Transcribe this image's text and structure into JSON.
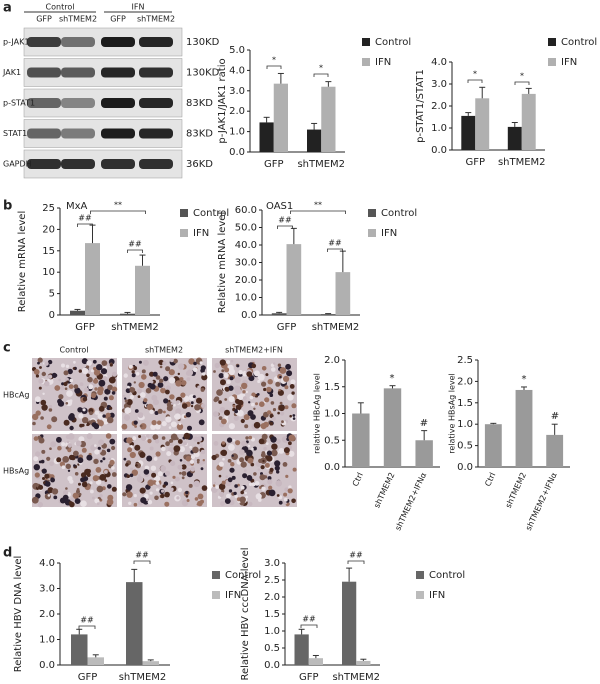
{
  "panel_labels": [
    "a",
    "b",
    "c",
    "d"
  ],
  "blot": {
    "groups": [
      "Control",
      "IFN"
    ],
    "lanes": [
      "GFP",
      "shTMEM2",
      "GFP",
      "shTMEM2"
    ],
    "rows": [
      {
        "label": "p-JAK1",
        "size": "130KD"
      },
      {
        "label": "JAK1",
        "size": "130KD"
      },
      {
        "label": "p-STAT1",
        "size": "83KD"
      },
      {
        "label": "STAT1",
        "size": "83KD"
      },
      {
        "label": "GAPDH",
        "size": "36KD"
      }
    ]
  },
  "micrograph": {
    "columns": [
      "Control",
      "shTMEM2",
      "shTMEM2+IFN"
    ],
    "rows": [
      "HBcAg",
      "HBsAg"
    ]
  },
  "chart_data": [
    {
      "type": "bar",
      "ylabel": "p-JAK1/JAK1 ratio",
      "categories": [
        "GFP",
        "shTMEM2"
      ],
      "series": [
        {
          "name": "Control",
          "color": "#222222",
          "values": [
            1.45,
            1.1
          ],
          "errors": [
            0.25,
            0.3
          ]
        },
        {
          "name": "IFN",
          "color": "#b0b0b0",
          "values": [
            3.35,
            3.2
          ],
          "errors": [
            0.5,
            0.25
          ]
        }
      ],
      "ylim": [
        0,
        5
      ],
      "yticks": [
        {
          "value": 0,
          "label": "0.0"
        },
        {
          "value": 1,
          "label": "1.0"
        },
        {
          "value": 2,
          "label": "2.0"
        },
        {
          "value": 3,
          "label": "3.0"
        },
        {
          "value": 4,
          "label": "4.0"
        },
        {
          "value": 5,
          "label": "5.0"
        }
      ],
      "annotations": [
        "*",
        "*"
      ]
    },
    {
      "type": "bar",
      "ylabel": "p-STAT1/STAT1",
      "categories": [
        "GFP",
        "shTMEM2"
      ],
      "series": [
        {
          "name": "Control",
          "color": "#222222",
          "values": [
            1.55,
            1.05
          ],
          "errors": [
            0.15,
            0.2
          ]
        },
        {
          "name": "IFN",
          "color": "#b0b0b0",
          "values": [
            2.35,
            2.55
          ],
          "errors": [
            0.5,
            0.25
          ]
        }
      ],
      "ylim": [
        0,
        4
      ],
      "yticks": [
        {
          "value": 0,
          "label": "0.0"
        },
        {
          "value": 1,
          "label": "1.0"
        },
        {
          "value": 2,
          "label": "2.0"
        },
        {
          "value": 3,
          "label": "3.0"
        },
        {
          "value": 4,
          "label": "4.0"
        }
      ],
      "annotations": [
        "*",
        "*"
      ]
    },
    {
      "type": "bar",
      "title": "MxA",
      "ylabel": "Relative mRNA level",
      "categories": [
        "GFP",
        "shTMEM2"
      ],
      "series": [
        {
          "name": "Control",
          "color": "#555555",
          "values": [
            1.0,
            0.3
          ],
          "errors": [
            0.3,
            0.3
          ]
        },
        {
          "name": "IFN",
          "color": "#b0b0b0",
          "values": [
            16.8,
            11.5
          ],
          "errors": [
            4.2,
            2.5
          ]
        }
      ],
      "ylim": [
        0,
        25
      ],
      "yticks": [
        0,
        5,
        10,
        15,
        20,
        25
      ],
      "annotations": [
        "##",
        "##",
        "**"
      ]
    },
    {
      "type": "bar",
      "title": "OAS1",
      "ylabel": "Relative mRNA level",
      "categories": [
        "GFP",
        "shTMEM2"
      ],
      "series": [
        {
          "name": "Control",
          "color": "#555555",
          "values": [
            1.0,
            0.5
          ],
          "errors": [
            0.5,
            0.3
          ]
        },
        {
          "name": "IFN",
          "color": "#b0b0b0",
          "values": [
            40.5,
            24.5
          ],
          "errors": [
            9,
            12
          ]
        }
      ],
      "ylim": [
        0,
        60
      ],
      "yticks": [
        {
          "value": 0,
          "label": "0.0"
        },
        {
          "value": 10,
          "label": "10.0"
        },
        {
          "value": 20,
          "label": "20.0"
        },
        {
          "value": 30,
          "label": "30.0"
        },
        {
          "value": 40,
          "label": "40.0"
        },
        {
          "value": 50,
          "label": "50.0"
        },
        {
          "value": 60,
          "label": "60.0"
        }
      ],
      "annotations": [
        "##",
        "##",
        "**"
      ]
    },
    {
      "type": "bar",
      "ylabel": "relative HBcAg level",
      "categories": [
        "Ctrl",
        "shTMEM2",
        "shTMEM2+IFNα"
      ],
      "values": [
        1.0,
        1.47,
        0.5
      ],
      "errors": [
        0.2,
        0.05,
        0.18
      ],
      "color": "#9a9a9a",
      "ylim": [
        0,
        2
      ],
      "yticks": [
        {
          "value": 0,
          "label": "0.0"
        },
        0.5,
        {
          "value": 1,
          "label": "1.0"
        },
        1.5,
        {
          "value": 2,
          "label": "2.0"
        }
      ],
      "annotations": [
        "*",
        "#"
      ]
    },
    {
      "type": "bar",
      "ylabel": "relative HBsAg level",
      "categories": [
        "Ctrl",
        "shTMEM2",
        "shTMEM2+IFNα"
      ],
      "values": [
        1.0,
        1.8,
        0.75
      ],
      "errors": [
        0.02,
        0.07,
        0.25
      ],
      "color": "#9a9a9a",
      "ylim": [
        0,
        2.5
      ],
      "yticks": [
        {
          "value": 0,
          "label": "0.0"
        },
        0.5,
        {
          "value": 1,
          "label": "1.0"
        },
        1.5,
        {
          "value": 2,
          "label": "2.0"
        },
        2.5
      ],
      "annotations": [
        "*",
        "#"
      ]
    },
    {
      "type": "bar",
      "ylabel": "Relative HBV DNA level",
      "categories": [
        "GFP",
        "shTMEM2"
      ],
      "series": [
        {
          "name": "Control",
          "color": "#666666",
          "values": [
            1.2,
            3.25
          ],
          "errors": [
            0.2,
            0.5
          ]
        },
        {
          "name": "IFN",
          "color": "#bbbbbb",
          "values": [
            0.3,
            0.15
          ],
          "errors": [
            0.1,
            0.05
          ]
        }
      ],
      "ylim": [
        0,
        4
      ],
      "yticks": [
        {
          "value": 0,
          "label": "0.0"
        },
        {
          "value": 1,
          "label": "1.0"
        },
        {
          "value": 2,
          "label": "2.0"
        },
        {
          "value": 3,
          "label": "3.0"
        },
        {
          "value": 4,
          "label": "4.0"
        }
      ],
      "annotations": [
        "##",
        "##"
      ]
    },
    {
      "type": "bar",
      "ylabel": "Relative HBV cccDNA level",
      "categories": [
        "GFP",
        "shTMEM2"
      ],
      "series": [
        {
          "name": "Control",
          "color": "#666666",
          "values": [
            0.9,
            2.45
          ],
          "errors": [
            0.15,
            0.4
          ]
        },
        {
          "name": "IFN",
          "color": "#bbbbbb",
          "values": [
            0.2,
            0.12
          ],
          "errors": [
            0.08,
            0.05
          ]
        }
      ],
      "ylim": [
        0,
        3
      ],
      "yticks": [
        {
          "value": 0,
          "label": "0.0"
        },
        0.5,
        {
          "value": 1,
          "label": "1.0"
        },
        1.5,
        {
          "value": 2,
          "label": "2.0"
        },
        2.5,
        {
          "value": 3,
          "label": "3.0"
        }
      ],
      "annotations": [
        "##",
        "##"
      ]
    }
  ]
}
